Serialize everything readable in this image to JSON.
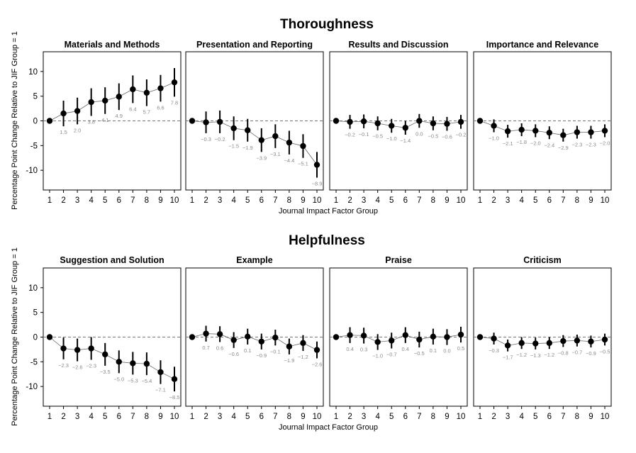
{
  "chart_data": [
    {
      "type": "line",
      "title": "Thoroughness",
      "xlabel": "Journal Impact Factor Group",
      "ylabel": "Percentage Point Change Relative to JIF Group = 1",
      "x": [
        1,
        2,
        3,
        4,
        5,
        6,
        7,
        8,
        9,
        10
      ],
      "ylim": [
        -14,
        14
      ],
      "yticks": [
        -10,
        -5,
        0,
        5,
        10
      ],
      "reference_line": 0,
      "panels": [
        {
          "name": "Materials and Methods",
          "values": [
            0,
            1.5,
            2.0,
            3.8,
            4.1,
            4.9,
            6.4,
            5.7,
            6.6,
            7.8
          ],
          "labels": [
            "",
            "1.5",
            "2.0",
            "3.8",
            "4.1",
            "4.9",
            "6.4",
            "5.7",
            "6.6",
            "7.8"
          ],
          "errors": [
            0,
            2.6,
            2.7,
            2.8,
            2.7,
            2.7,
            2.8,
            2.7,
            2.7,
            2.9
          ]
        },
        {
          "name": "Presentation and Reporting",
          "values": [
            0,
            -0.3,
            -0.2,
            -1.5,
            -1.9,
            -3.9,
            -3.1,
            -4.4,
            -5.1,
            -8.9
          ],
          "labels": [
            "",
            "−0.3",
            "−0.2",
            "−1.5",
            "−1.9",
            "−3.9",
            "−3.1",
            "−4.4",
            "−5.1",
            "−8.9"
          ],
          "errors": [
            0,
            2.2,
            2.3,
            2.4,
            2.3,
            2.4,
            2.4,
            2.4,
            2.4,
            2.6
          ]
        },
        {
          "name": "Results and Discussion",
          "values": [
            0,
            -0.2,
            -0.1,
            -0.5,
            -1.0,
            -1.4,
            0.0,
            -0.5,
            -0.6,
            -0.2
          ],
          "labels": [
            "",
            "−0.2",
            "−0.1",
            "−0.5",
            "−1.0",
            "−1.4",
            "0.0",
            "−0.5",
            "−0.6",
            "−0.2"
          ],
          "errors": [
            0,
            1.4,
            1.4,
            1.4,
            1.4,
            1.4,
            1.4,
            1.4,
            1.4,
            1.4
          ]
        },
        {
          "name": "Importance and Relevance",
          "values": [
            0,
            -1.0,
            -2.1,
            -1.8,
            -2.0,
            -2.4,
            -2.9,
            -2.3,
            -2.3,
            -2.0
          ],
          "labels": [
            "",
            "−1.0",
            "−2.1",
            "−1.8",
            "−2.0",
            "−2.4",
            "−2.9",
            "−2.3",
            "−2.3",
            "−2.0"
          ],
          "errors": [
            0,
            1.3,
            1.3,
            1.3,
            1.3,
            1.3,
            1.3,
            1.3,
            1.3,
            1.3
          ]
        }
      ]
    },
    {
      "type": "line",
      "title": "Helpfulness",
      "xlabel": "Journal Impact Factor Group",
      "ylabel": "Percentage Point Change Relative to JIF Group = 1",
      "x": [
        1,
        2,
        3,
        4,
        5,
        6,
        7,
        8,
        9,
        10
      ],
      "ylim": [
        -14,
        14
      ],
      "yticks": [
        -10,
        -5,
        0,
        5,
        10
      ],
      "reference_line": 0,
      "panels": [
        {
          "name": "Suggestion and Solution",
          "values": [
            0,
            -2.3,
            -2.6,
            -2.3,
            -3.5,
            -5.0,
            -5.3,
            -5.4,
            -7.1,
            -8.5
          ],
          "labels": [
            "",
            "−2.3",
            "−2.6",
            "−2.3",
            "−3.5",
            "−5.0",
            "−5.3",
            "−5.4",
            "−7.1",
            "−8.5"
          ],
          "errors": [
            0,
            2.2,
            2.3,
            2.3,
            2.3,
            2.3,
            2.3,
            2.3,
            2.4,
            2.5
          ]
        },
        {
          "name": "Example",
          "values": [
            0,
            0.7,
            0.6,
            -0.6,
            0.1,
            -0.9,
            -0.1,
            -1.9,
            -1.2,
            -2.6
          ],
          "labels": [
            "",
            "0.7",
            "0.6",
            "−0.6",
            "0.1",
            "−0.9",
            "−0.1",
            "−1.9",
            "−1.2",
            "−2.6"
          ],
          "errors": [
            0,
            1.6,
            1.6,
            1.6,
            1.6,
            1.6,
            1.6,
            1.6,
            1.6,
            1.7
          ]
        },
        {
          "name": "Praise",
          "values": [
            0,
            0.4,
            0.3,
            -1.0,
            -0.7,
            0.4,
            -0.5,
            0.1,
            0.0,
            0.5
          ],
          "labels": [
            "",
            "0.4",
            "0.3",
            "−1.0",
            "−0.7",
            "0.4",
            "−0.5",
            "0.1",
            "0.0",
            "0.5"
          ],
          "errors": [
            0,
            1.6,
            1.6,
            1.6,
            1.6,
            1.6,
            1.6,
            1.6,
            1.6,
            1.6
          ]
        },
        {
          "name": "Criticism",
          "values": [
            0,
            -0.3,
            -1.7,
            -1.2,
            -1.3,
            -1.2,
            -0.8,
            -0.7,
            -0.9,
            -0.5
          ],
          "labels": [
            "",
            "−0.3",
            "−1.7",
            "−1.2",
            "−1.3",
            "−1.2",
            "−0.8",
            "−0.7",
            "−0.9",
            "−0.5"
          ],
          "errors": [
            0,
            1.2,
            1.2,
            1.2,
            1.2,
            1.2,
            1.2,
            1.2,
            1.2,
            1.2
          ]
        }
      ]
    }
  ]
}
